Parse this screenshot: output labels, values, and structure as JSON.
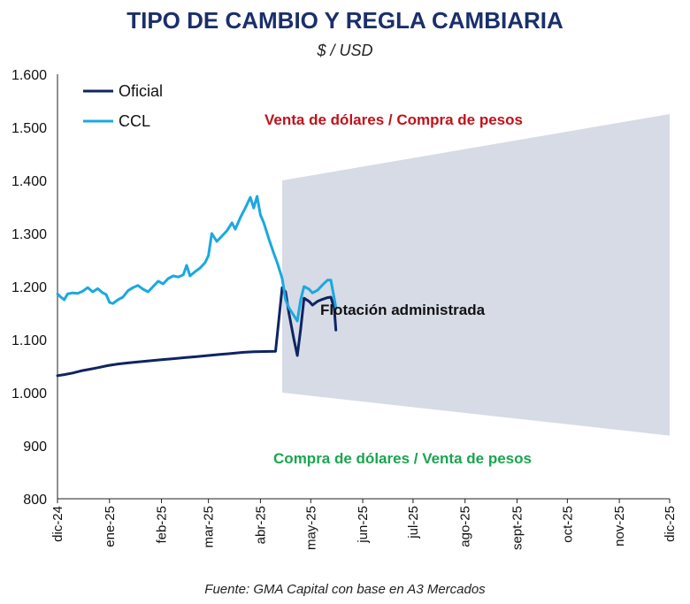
{
  "chart_data": {
    "type": "line",
    "title": "TIPO DE CAMBIO Y REGLA CAMBIARIA",
    "subtitle": "$ / USD",
    "source": "Fuente: GMA Capital con base en A3 Mercados",
    "ylim": [
      800,
      1600
    ],
    "yticks": [
      800,
      900,
      1000,
      1100,
      1200,
      1300,
      1400,
      1500,
      1600
    ],
    "ytick_labels": [
      "800",
      "900",
      "1.000",
      "1.100",
      "1.200",
      "1.300",
      "1.400",
      "1.500",
      "1.600"
    ],
    "xlim": [
      "2024-12-01",
      "2025-12-01"
    ],
    "xticks": [
      "2024-12-01",
      "2025-01-01",
      "2025-02-01",
      "2025-03-01",
      "2025-04-01",
      "2025-05-01",
      "2025-06-01",
      "2025-07-01",
      "2025-08-01",
      "2025-09-01",
      "2025-10-01",
      "2025-11-01",
      "2025-12-01"
    ],
    "xtick_labels": [
      "dic-24",
      "ene-25",
      "feb-25",
      "mar-25",
      "abr-25",
      "may-25",
      "jun-25",
      "jul-25",
      "ago-25",
      "sept-25",
      "oct-25",
      "nov-25",
      "dic-25"
    ],
    "legend_position": "top-left",
    "grid": false,
    "band": {
      "label": "Flotación administrada",
      "color": "#d6dbe6",
      "start": "2025-04-14",
      "end": "2025-12-01",
      "lower": [
        1000,
        919
      ],
      "upper": [
        1400,
        1525
      ]
    },
    "annotations": [
      {
        "text": "Venta de dólares / Compra de pesos",
        "color": "#c0121b"
      },
      {
        "text": "Compra de dólares / Venta de pesos",
        "color": "#1aa550"
      }
    ],
    "series": [
      {
        "name": "Oficial",
        "color": "#0f2463",
        "points": [
          [
            "2024-12-01",
            1032
          ],
          [
            "2024-12-05",
            1034
          ],
          [
            "2024-12-10",
            1037
          ],
          [
            "2024-12-15",
            1041
          ],
          [
            "2024-12-20",
            1044
          ],
          [
            "2024-12-25",
            1047
          ],
          [
            "2024-12-31",
            1051
          ],
          [
            "2025-01-06",
            1054
          ],
          [
            "2025-01-12",
            1056
          ],
          [
            "2025-01-18",
            1058
          ],
          [
            "2025-01-25",
            1060
          ],
          [
            "2025-02-01",
            1062
          ],
          [
            "2025-02-08",
            1064
          ],
          [
            "2025-02-15",
            1066
          ],
          [
            "2025-02-22",
            1068
          ],
          [
            "2025-03-01",
            1070
          ],
          [
            "2025-03-08",
            1072
          ],
          [
            "2025-03-15",
            1074
          ],
          [
            "2025-03-22",
            1076
          ],
          [
            "2025-03-28",
            1077
          ],
          [
            "2025-04-10",
            1078
          ],
          [
            "2025-04-14",
            1198
          ],
          [
            "2025-04-16",
            1190
          ],
          [
            "2025-04-18",
            1150
          ],
          [
            "2025-04-21",
            1100
          ],
          [
            "2025-04-23",
            1070
          ],
          [
            "2025-04-25",
            1120
          ],
          [
            "2025-04-27",
            1178
          ],
          [
            "2025-04-30",
            1172
          ],
          [
            "2025-05-02",
            1165
          ],
          [
            "2025-05-05",
            1172
          ],
          [
            "2025-05-08",
            1176
          ],
          [
            "2025-05-11",
            1179
          ],
          [
            "2025-05-13",
            1180
          ],
          [
            "2025-05-15",
            1160
          ],
          [
            "2025-05-16",
            1118
          ]
        ]
      },
      {
        "name": "CCL",
        "color": "#1ba8e0",
        "points": [
          [
            "2024-12-01",
            1186
          ],
          [
            "2024-12-03",
            1180
          ],
          [
            "2024-12-05",
            1175
          ],
          [
            "2024-12-07",
            1186
          ],
          [
            "2024-12-10",
            1188
          ],
          [
            "2024-12-13",
            1187
          ],
          [
            "2024-12-16",
            1191
          ],
          [
            "2024-12-19",
            1198
          ],
          [
            "2024-12-22",
            1190
          ],
          [
            "2024-12-25",
            1196
          ],
          [
            "2024-12-28",
            1188
          ],
          [
            "2024-12-30",
            1185
          ],
          [
            "2025-01-01",
            1170
          ],
          [
            "2025-01-03",
            1168
          ],
          [
            "2025-01-06",
            1175
          ],
          [
            "2025-01-09",
            1180
          ],
          [
            "2025-01-12",
            1192
          ],
          [
            "2025-01-15",
            1198
          ],
          [
            "2025-01-18",
            1202
          ],
          [
            "2025-01-21",
            1195
          ],
          [
            "2025-01-24",
            1190
          ],
          [
            "2025-01-27",
            1200
          ],
          [
            "2025-01-30",
            1210
          ],
          [
            "2025-02-02",
            1205
          ],
          [
            "2025-02-05",
            1215
          ],
          [
            "2025-02-08",
            1220
          ],
          [
            "2025-02-11",
            1218
          ],
          [
            "2025-02-14",
            1222
          ],
          [
            "2025-02-16",
            1240
          ],
          [
            "2025-02-18",
            1220
          ],
          [
            "2025-02-21",
            1228
          ],
          [
            "2025-02-24",
            1235
          ],
          [
            "2025-02-27",
            1245
          ],
          [
            "2025-03-01",
            1258
          ],
          [
            "2025-03-03",
            1300
          ],
          [
            "2025-03-06",
            1285
          ],
          [
            "2025-03-09",
            1295
          ],
          [
            "2025-03-12",
            1305
          ],
          [
            "2025-03-15",
            1320
          ],
          [
            "2025-03-17",
            1308
          ],
          [
            "2025-03-20",
            1330
          ],
          [
            "2025-03-23",
            1348
          ],
          [
            "2025-03-26",
            1368
          ],
          [
            "2025-03-28",
            1348
          ],
          [
            "2025-03-30",
            1370
          ],
          [
            "2025-04-01",
            1335
          ],
          [
            "2025-04-03",
            1320
          ],
          [
            "2025-04-06",
            1290
          ],
          [
            "2025-04-09",
            1262
          ],
          [
            "2025-04-11",
            1245
          ],
          [
            "2025-04-14",
            1215
          ],
          [
            "2025-04-16",
            1175
          ],
          [
            "2025-04-18",
            1160
          ],
          [
            "2025-04-21",
            1145
          ],
          [
            "2025-04-23",
            1135
          ],
          [
            "2025-04-25",
            1175
          ],
          [
            "2025-04-27",
            1200
          ],
          [
            "2025-04-30",
            1195
          ],
          [
            "2025-05-02",
            1188
          ],
          [
            "2025-05-05",
            1193
          ],
          [
            "2025-05-08",
            1203
          ],
          [
            "2025-05-11",
            1212
          ],
          [
            "2025-05-13",
            1212
          ],
          [
            "2025-05-15",
            1178
          ],
          [
            "2025-05-16",
            1160
          ]
        ]
      }
    ]
  }
}
